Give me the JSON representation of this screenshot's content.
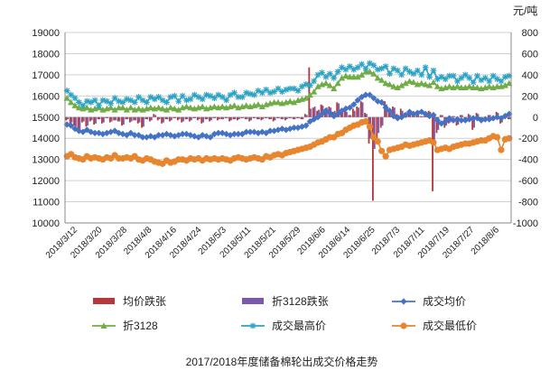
{
  "chart_data": {
    "type": "line",
    "title": "2017/2018年度储备棉轮出成交价格走势",
    "right_axis_unit": "元/吨",
    "left_axis": {
      "ylim": [
        10000,
        19000
      ],
      "ticks": [
        10000,
        11000,
        12000,
        13000,
        14000,
        15000,
        16000,
        17000,
        18000,
        19000
      ]
    },
    "right_axis": {
      "ylim": [
        -1000,
        800
      ],
      "ticks": [
        -1000,
        -800,
        -600,
        -400,
        -200,
        0,
        200,
        400,
        600,
        800
      ]
    },
    "grid": true,
    "legend_position": "bottom",
    "x_tick_labels": [
      "2018/3/12",
      "2018/3/20",
      "2018/3/28",
      "2018/4/8",
      "2018/4/16",
      "2018/4/24",
      "2018/5/3",
      "2018/5/11",
      "2018/5/21",
      "2018/5/29",
      "2018/6/6",
      "2018/6/14",
      "2018/6/25",
      "2018/7/3",
      "2018/7/11",
      "2018/7/19",
      "2018/7/27",
      "2018/8/6"
    ],
    "x_count": 112,
    "series": [
      {
        "name": "均价跌张",
        "type": "bar",
        "axis": "right",
        "color": "#b5383a",
        "values": [
          -30,
          -60,
          -80,
          -120,
          -50,
          -90,
          -40,
          -70,
          -20,
          -60,
          -10,
          -50,
          -30,
          -40,
          -80,
          -20,
          -50,
          -30,
          -60,
          -100,
          -20,
          -40,
          30,
          -30,
          -60,
          -20,
          -40,
          -10,
          -30,
          -50,
          -20,
          -40,
          -10,
          -30,
          -60,
          -20,
          -40,
          -10,
          -30,
          -20,
          -10,
          -40,
          -20,
          -30,
          -10,
          -20,
          -40,
          -10,
          -20,
          -30,
          -10,
          -20,
          -40,
          -10,
          -20,
          -30,
          -10,
          -20,
          -10,
          -20,
          30,
          470,
          90,
          60,
          120,
          80,
          100,
          50,
          140,
          80,
          60,
          20,
          80,
          100,
          150,
          40,
          -250,
          -790,
          -200,
          -100,
          150,
          50,
          100,
          30,
          80,
          40,
          60,
          20,
          50,
          10,
          30,
          60,
          -700,
          -150,
          20,
          -100,
          -60,
          10,
          -80,
          20,
          -40,
          30,
          -120,
          40,
          -20,
          -40,
          20,
          -30,
          50,
          -60,
          30,
          -20
        ]
      },
      {
        "name": "折3128跌张",
        "type": "bar",
        "axis": "right",
        "color": "#7a5aa8",
        "values": [
          -20,
          -50,
          -90,
          -110,
          -40,
          -80,
          -30,
          -60,
          -20,
          -50,
          -10,
          -40,
          -30,
          -40,
          -70,
          -20,
          -40,
          -30,
          -50,
          -90,
          -20,
          -30,
          20,
          -20,
          -50,
          -20,
          -30,
          -10,
          -20,
          -40,
          -20,
          -30,
          -10,
          -20,
          -50,
          -20,
          -30,
          -10,
          -20,
          -20,
          -10,
          -30,
          -20,
          -20,
          -10,
          -20,
          -30,
          -10,
          -20,
          -20,
          -10,
          -20,
          -30,
          -10,
          -20,
          -20,
          -10,
          -20,
          -10,
          -20,
          20,
          80,
          100,
          70,
          110,
          90,
          90,
          60,
          130,
          70,
          50,
          20,
          60,
          90,
          140,
          30,
          -200,
          -300,
          -150,
          -80,
          120,
          40,
          90,
          20,
          60,
          30,
          50,
          20,
          40,
          10,
          20,
          50,
          -250,
          -120,
          20,
          -80,
          -50,
          10,
          -70,
          20,
          -30,
          20,
          -100,
          30,
          -20,
          -30,
          20,
          -30,
          40,
          -50,
          20,
          -20
        ]
      },
      {
        "name": "成交均价",
        "type": "line",
        "axis": "left",
        "marker": "diamond",
        "color": "#4472c4",
        "values": [
          14650,
          14600,
          14450,
          14350,
          14300,
          14400,
          14300,
          14250,
          14250,
          14200,
          14250,
          14300,
          14350,
          14250,
          14200,
          14150,
          14250,
          14150,
          14150,
          14050,
          14050,
          14100,
          14050,
          14150,
          14150,
          14200,
          14150,
          14100,
          14150,
          14200,
          14200,
          14150,
          14100,
          14050,
          14150,
          14100,
          14050,
          14200,
          14250,
          14250,
          14200,
          14150,
          14200,
          14200,
          14200,
          14300,
          14300,
          14300,
          14250,
          14300,
          14250,
          14350,
          14350,
          14400,
          14450,
          14400,
          14450,
          14500,
          14500,
          14550,
          14600,
          14800,
          14900,
          15000,
          15150,
          15300,
          15200,
          15050,
          15150,
          15300,
          15400,
          15450,
          15600,
          15800,
          15950,
          16050,
          16050,
          15900,
          15750,
          15700,
          15450,
          15300,
          15050,
          14950,
          15000,
          15100,
          15250,
          15150,
          15200,
          15250,
          15150,
          15050,
          15100,
          14850,
          14700,
          14800,
          14950,
          14850,
          14900,
          14850,
          14850,
          14900,
          14950,
          14950,
          14850,
          14900,
          14900,
          14950,
          15000,
          14950,
          15050,
          15150
        ]
      },
      {
        "name": "折3128",
        "type": "line",
        "axis": "left",
        "marker": "triangle",
        "color": "#70ad47",
        "values": [
          15900,
          15700,
          15550,
          15450,
          15400,
          15450,
          15350,
          15400,
          15450,
          15350,
          15400,
          15450,
          15350,
          15450,
          15450,
          15350,
          15450,
          15350,
          15400,
          15350,
          15400,
          15450,
          15400,
          15450,
          15400,
          15350,
          15450,
          15400,
          15350,
          15450,
          15500,
          15450,
          15400,
          15450,
          15500,
          15400,
          15450,
          15500,
          15450,
          15500,
          15450,
          15500,
          15550,
          15450,
          15500,
          15550,
          15500,
          15550,
          15600,
          15500,
          15600,
          15650,
          15700,
          15700,
          15650,
          15700,
          15750,
          15700,
          15800,
          15850,
          15900,
          16050,
          16200,
          16450,
          16550,
          16600,
          16500,
          16350,
          16600,
          16850,
          16950,
          16900,
          16900,
          16900,
          17000,
          17150,
          17150,
          17050,
          16850,
          16750,
          16600,
          16550,
          16450,
          16400,
          16500,
          16600,
          16700,
          16650,
          16550,
          16600,
          16550,
          16500,
          16650,
          16450,
          16350,
          16400,
          16450,
          16400,
          16450,
          16400,
          16400,
          16450,
          16400,
          16400,
          16350,
          16400,
          16450,
          16400,
          16450,
          16450,
          16500,
          16600
        ]
      },
      {
        "name": "成交最高价",
        "type": "line",
        "axis": "left",
        "marker": "star",
        "color": "#2ea3c4",
        "values": [
          16250,
          16050,
          15900,
          15700,
          15550,
          15750,
          15700,
          15800,
          15550,
          15800,
          15750,
          15650,
          15900,
          15750,
          15700,
          15850,
          15800,
          15700,
          15950,
          15800,
          15700,
          15950,
          15850,
          15950,
          15800,
          15700,
          15950,
          16000,
          15750,
          16000,
          15800,
          15850,
          16050,
          15950,
          15850,
          16050,
          16000,
          15900,
          16050,
          15950,
          15800,
          16050,
          16150,
          15950,
          15950,
          16150,
          16100,
          16050,
          16250,
          16150,
          16300,
          16150,
          16200,
          16350,
          16200,
          16300,
          16350,
          16350,
          16250,
          16450,
          16550,
          16500,
          16700,
          17000,
          17100,
          16900,
          17050,
          16850,
          17150,
          17350,
          17250,
          17400,
          17250,
          17350,
          17500,
          17300,
          17550,
          17450,
          17250,
          17300,
          17400,
          17050,
          17300,
          17200,
          17000,
          17300,
          17150,
          17050,
          17200,
          17000,
          17350,
          16900,
          17200,
          16800,
          16900,
          16800,
          16950,
          16950,
          16700,
          16850,
          17000,
          16850,
          16650,
          16950,
          16750,
          16850,
          16700,
          16950,
          16800,
          16700,
          16900,
          16950
        ]
      },
      {
        "name": "成交最低价",
        "type": "line",
        "axis": "left",
        "marker": "circle",
        "color": "#e8852f",
        "values": [
          13150,
          13250,
          13100,
          13050,
          13000,
          13150,
          13050,
          13100,
          13050,
          13000,
          13100,
          13050,
          13200,
          13050,
          13050,
          13100,
          13050,
          13150,
          13000,
          12950,
          13050,
          13000,
          12900,
          12850,
          12800,
          12950,
          12850,
          12900,
          13000,
          13000,
          12950,
          13050,
          13000,
          13050,
          12950,
          13050,
          13000,
          13050,
          13000,
          13050,
          13000,
          12950,
          13050,
          13100,
          13050,
          13000,
          13050,
          13100,
          13050,
          13000,
          13150,
          13100,
          13200,
          13250,
          13200,
          13300,
          13350,
          13400,
          13450,
          13500,
          13550,
          13600,
          13700,
          13800,
          13850,
          13950,
          14050,
          14050,
          14200,
          14250,
          14400,
          14500,
          14600,
          14650,
          14750,
          14800,
          14550,
          14050,
          13850,
          13400,
          13150,
          13450,
          13500,
          13550,
          13600,
          13700,
          13650,
          13700,
          13750,
          13800,
          13850,
          13900,
          13800,
          13450,
          13500,
          13550,
          13500,
          13600,
          13650,
          13700,
          13750,
          13750,
          13800,
          13850,
          13900,
          13900,
          14000,
          14100,
          14050,
          13450,
          13950,
          14000
        ]
      }
    ]
  }
}
